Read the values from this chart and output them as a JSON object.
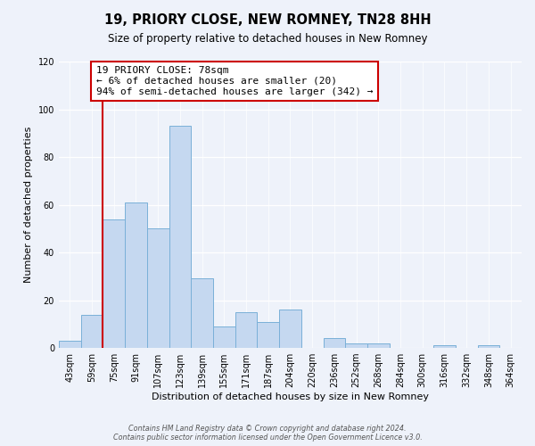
{
  "title": "19, PRIORY CLOSE, NEW ROMNEY, TN28 8HH",
  "subtitle": "Size of property relative to detached houses in New Romney",
  "xlabel": "Distribution of detached houses by size in New Romney",
  "ylabel": "Number of detached properties",
  "bin_labels": [
    "43sqm",
    "59sqm",
    "75sqm",
    "91sqm",
    "107sqm",
    "123sqm",
    "139sqm",
    "155sqm",
    "171sqm",
    "187sqm",
    "204sqm",
    "220sqm",
    "236sqm",
    "252sqm",
    "268sqm",
    "284sqm",
    "300sqm",
    "316sqm",
    "332sqm",
    "348sqm",
    "364sqm"
  ],
  "bar_values": [
    3,
    14,
    54,
    61,
    50,
    93,
    29,
    9,
    15,
    11,
    16,
    0,
    4,
    2,
    2,
    0,
    0,
    1,
    0,
    1,
    0
  ],
  "bar_color": "#c5d8f0",
  "bar_edge_color": "#7ab0d8",
  "vline_index": 2,
  "vline_color": "#cc0000",
  "annotation_text": "19 PRIORY CLOSE: 78sqm\n← 6% of detached houses are smaller (20)\n94% of semi-detached houses are larger (342) →",
  "annotation_box_color": "#ffffff",
  "annotation_box_edge_color": "#cc0000",
  "ylim": [
    0,
    120
  ],
  "yticks": [
    0,
    20,
    40,
    60,
    80,
    100,
    120
  ],
  "footer_text": "Contains HM Land Registry data © Crown copyright and database right 2024.\nContains public sector information licensed under the Open Government Licence v3.0.",
  "background_color": "#eef2fa",
  "grid_color": "#ffffff",
  "title_fontsize": 10.5,
  "subtitle_fontsize": 8.5,
  "xlabel_fontsize": 8,
  "ylabel_fontsize": 8,
  "tick_fontsize": 7,
  "footer_fontsize": 5.8,
  "annot_fontsize": 8
}
